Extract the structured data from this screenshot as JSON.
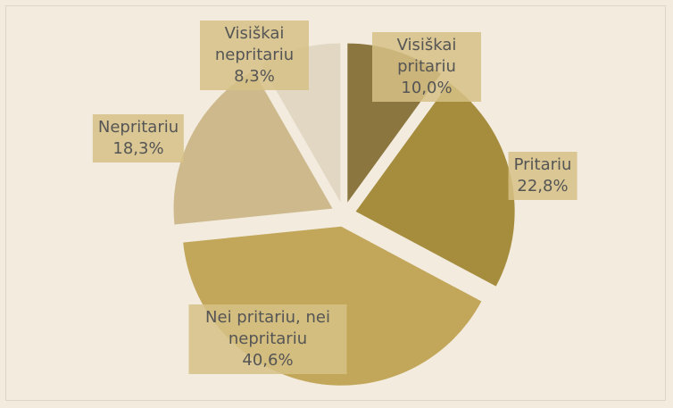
{
  "chart_data": {
    "type": "pie",
    "categories": [
      "Visiškai pritariu",
      "Pritariu",
      "Nei pritariu, nei nepritariu",
      "Nepritariu",
      "Visiškai nepritariu"
    ],
    "values": [
      10.0,
      22.8,
      40.6,
      18.3,
      8.3
    ],
    "value_labels": [
      "10,0%",
      "22,8%",
      "40,6%",
      "18,3%",
      "8,3%"
    ],
    "colors": [
      "#8c7640",
      "#a68d3e",
      "#c2a659",
      "#cdb98c",
      "#e2d7c2"
    ]
  }
}
